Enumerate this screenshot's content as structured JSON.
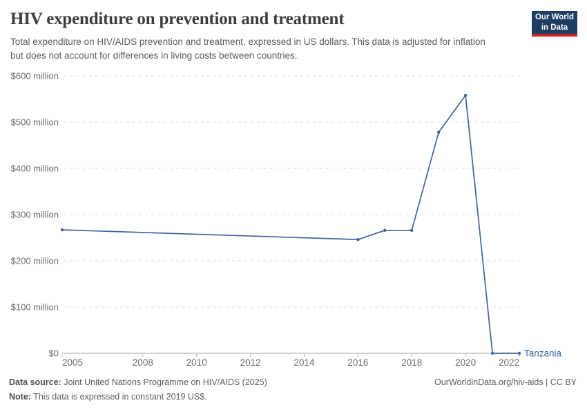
{
  "header": {
    "title": "HIV expenditure on prevention and treatment",
    "subtitle": "Total expenditure on HIV/AIDS prevention and treatment, expressed in US dollars. This data is adjusted for inflation but does not account for differences in living costs between countries.",
    "logo": {
      "line1": "Our World",
      "line2": "in Data",
      "bg_color": "#1d3d63",
      "accent_color": "#c9261f"
    }
  },
  "chart_data": {
    "type": "line",
    "title": "HIV expenditure on prevention and treatment",
    "xlabel": "",
    "ylabel": "",
    "values_unit": "million US$",
    "xlim": [
      2005,
      2022
    ],
    "ylim": [
      0,
      600
    ],
    "grid": "horizontal-dashed",
    "legend_position": "line-end-label",
    "x": [
      2005,
      2016,
      2017,
      2018,
      2019,
      2020,
      2021,
      2022
    ],
    "series": [
      {
        "name": "Tanzania",
        "values": [
          267,
          246,
          266,
          266,
          478,
          558,
          0,
          0
        ],
        "color": "#3d639f"
      }
    ],
    "x_ticks": [
      2005,
      2008,
      2010,
      2012,
      2014,
      2016,
      2018,
      2020,
      2022
    ],
    "y_ticks": [
      {
        "value": 0,
        "label": "$0"
      },
      {
        "value": 100,
        "label": "$100 million"
      },
      {
        "value": 200,
        "label": "$200 million"
      },
      {
        "value": 300,
        "label": "$300 million"
      },
      {
        "value": 400,
        "label": "$400 million"
      },
      {
        "value": 500,
        "label": "$500 million"
      },
      {
        "value": 600,
        "label": "$600 million"
      }
    ],
    "colors": {
      "grid": "#dcdcdc",
      "axis": "#a3a3a3",
      "tick_mark": "#b5b5b5",
      "tick_text": "#6b6b6b"
    }
  },
  "footer": {
    "source_label": "Data source:",
    "source_text": "Joint United Nations Programme on HIV/AIDS (2025)",
    "note_label": "Note:",
    "note_text": "This data is expressed in constant 2019 US$.",
    "right_text": "OurWorldinData.org/hiv-aids | CC BY"
  }
}
